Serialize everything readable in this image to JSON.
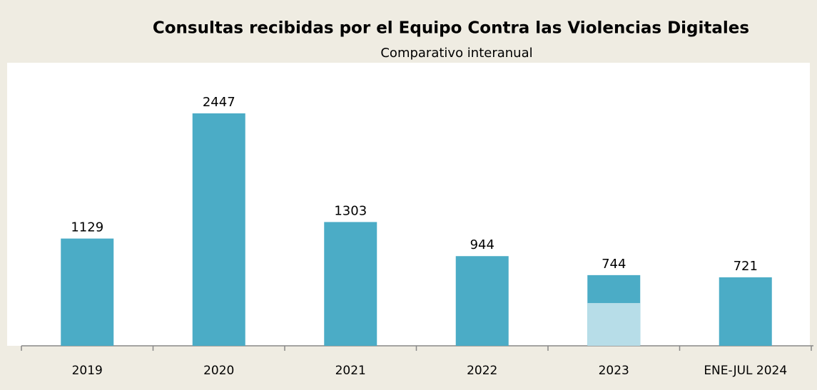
{
  "chart_data": {
    "type": "bar",
    "title": "Consultas recibidas por el Equipo Contra las Violencias Digitales",
    "subtitle": "Comparativo interanual",
    "categories": [
      "2019",
      "2020",
      "2021",
      "2022",
      "2023",
      "ENE-JUL 2024"
    ],
    "series": [
      {
        "color": "#4bacc6",
        "values": [
          1129,
          2447,
          1303,
          944,
          744,
          721
        ]
      },
      {
        "color": "#b7dde8",
        "values": [
          null,
          null,
          null,
          null,
          450,
          null
        ]
      }
    ],
    "value_labels_series": 0
  }
}
